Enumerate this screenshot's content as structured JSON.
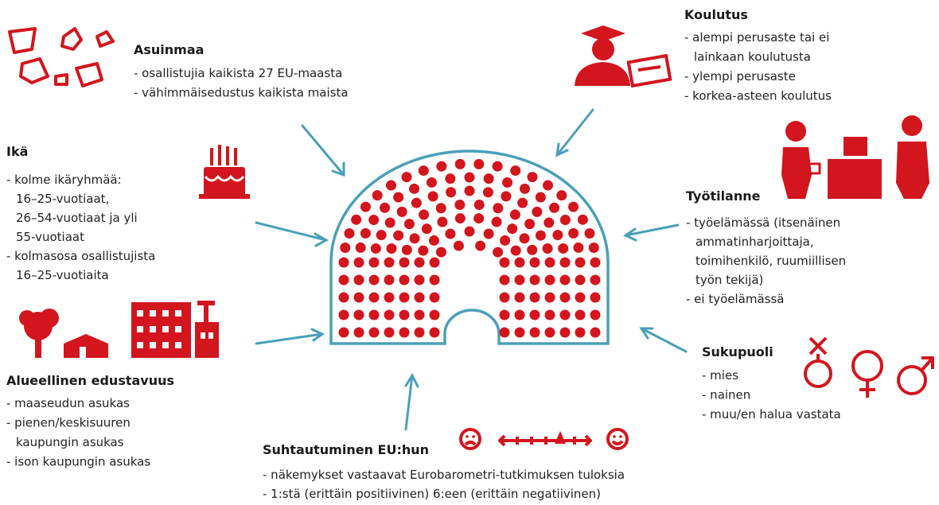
{
  "sections": [
    {
      "title": "Asuinmaa",
      "items": [
        [
          "- osallistujia kaikista 27 EU-maasta"
        ],
        [
          "- vähimmäisedustus kaikista maista"
        ]
      ]
    },
    {
      "title": "Koulutus",
      "items": [
        [
          "- alempi perusaste tai ei",
          "lainkaan koulutusta"
        ],
        [
          "- ylempi perusaste"
        ],
        [
          "- korkea-asteen koulutus"
        ]
      ]
    },
    {
      "title": "Ikä",
      "items": [
        [
          "- kolme ikäryhmää:",
          "16–25-vuotiaat,",
          "26–54-vuotiaat ja yli",
          "55-vuotiaat"
        ],
        [
          "- kolmasosa osallistujista",
          "16–25-vuotiaita"
        ]
      ]
    },
    {
      "title": "Työtilanne",
      "items": [
        [
          "- työelämässä (itsenäinen",
          "ammatinharjoittaja,",
          "toimihenkilö, ruumiillisen",
          "työn tekijä)"
        ],
        [
          "- ei työelämässä"
        ]
      ]
    },
    {
      "title": "Sukupuoli",
      "items": [
        [
          "- mies"
        ],
        [
          "- nainen"
        ],
        [
          "- muu/en halua vastata"
        ]
      ]
    },
    {
      "title": "Alueellinen edustavuus",
      "items": [
        [
          "- maaseudun asukas"
        ],
        [
          "- pienen/keskisuuren",
          "kaupungin asukas"
        ],
        [
          "- ison kaupungin asukas"
        ]
      ]
    },
    {
      "title": "Suhtautuminen EU:hun",
      "items": [
        [
          "- näkemykset vastaavat Eurobarometri-tutkimuksen tuloksia"
        ],
        [
          "- 1:stä (erittäin positiivinen) 6:een (erittäin negatiivinen)"
        ]
      ]
    }
  ]
}
